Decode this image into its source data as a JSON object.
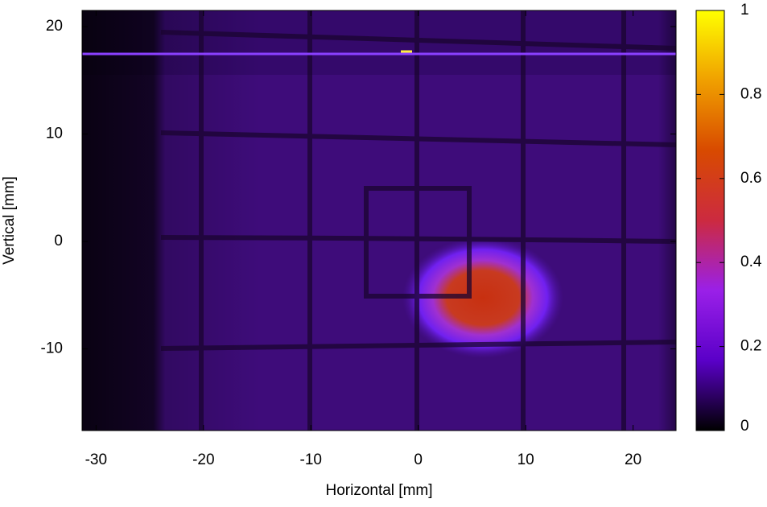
{
  "chart_data": {
    "type": "heatmap",
    "xlabel": "Horizontal [mm]",
    "ylabel": "Vertical [mm]",
    "xlim": [
      -31.3,
      24
    ],
    "xticks": [
      -30,
      -20,
      -10,
      0,
      10,
      20
    ],
    "ylim": [
      -17.6,
      21.5
    ],
    "yticks": [
      -10,
      0,
      10,
      20
    ],
    "clim": [
      0,
      1
    ],
    "cbticks": [
      0,
      0.2,
      0.4,
      0.6,
      0.8,
      1
    ],
    "colormap": [
      "#000000",
      "#5a00c8",
      "#9a20e8",
      "#cc2a40",
      "#d84a00",
      "#f0a000",
      "#ffff00"
    ]
  }
}
